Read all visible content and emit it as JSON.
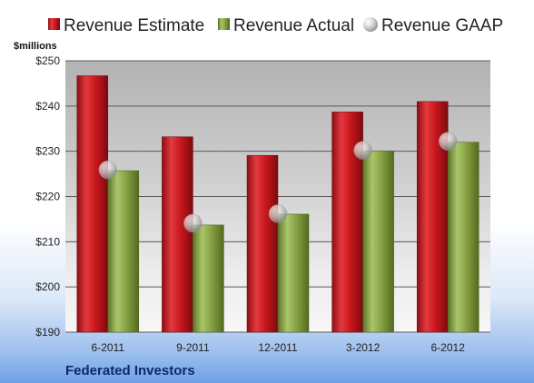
{
  "company": "Federated Investors",
  "chart_data": {
    "type": "bar",
    "categories": [
      "6-2011",
      "9-2011",
      "12-2011",
      "3-2012",
      "6-2012"
    ],
    "series": [
      {
        "name": "Revenue Estimate",
        "kind": "bar",
        "color": "#c0141b",
        "values": [
          246.7,
          233.2,
          229.1,
          238.7,
          241.0
        ]
      },
      {
        "name": "Revenue Actual",
        "kind": "bar",
        "color": "#7f9a3e",
        "values": [
          225.7,
          213.7,
          216.1,
          230.1,
          232.0
        ]
      },
      {
        "name": "Revenue GAAP",
        "kind": "marker",
        "color": "#c8c8c8",
        "values": [
          225.9,
          214.1,
          216.2,
          230.2,
          232.2
        ]
      }
    ],
    "ylabel": "$millions",
    "ylim": [
      190,
      250
    ],
    "yticks": [
      190,
      200,
      210,
      220,
      230,
      240,
      250
    ],
    "ytick_labels": [
      "$190",
      "$200",
      "$210",
      "$220",
      "$230",
      "$240",
      "$250"
    ],
    "grid": true,
    "legend_position": "top"
  }
}
